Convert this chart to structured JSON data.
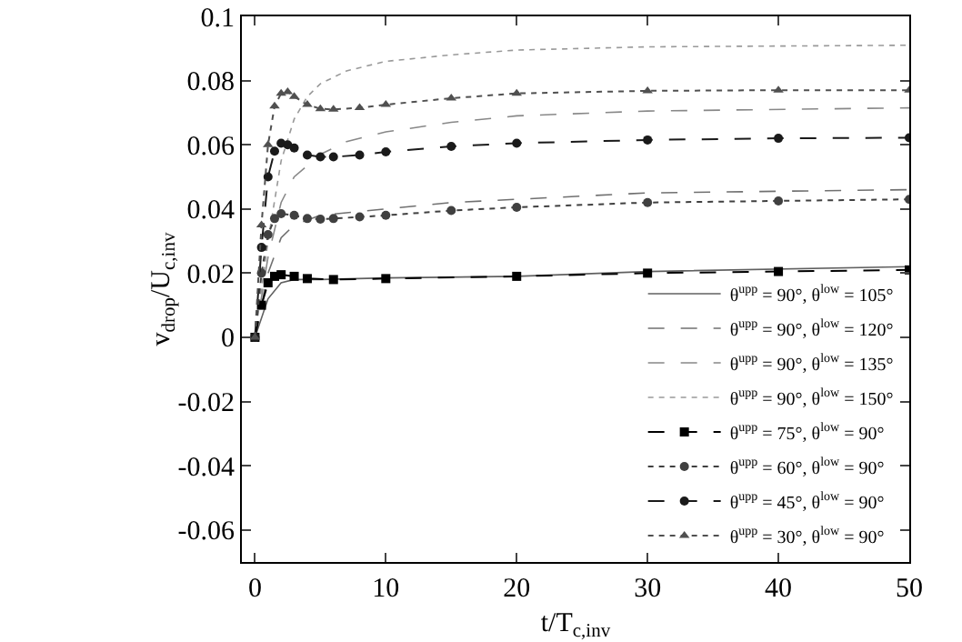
{
  "chart_data": {
    "type": "line",
    "xlabel": "t/T$_{c,inv}$",
    "ylabel": "v$_{drop}$/U$_{c,inv}$",
    "xlim": [
      -1,
      50
    ],
    "ylim": [
      -0.07,
      0.1
    ],
    "xticks": [
      0,
      10,
      20,
      30,
      40,
      50
    ],
    "yticks": [
      -0.06,
      -0.04,
      -0.02,
      0,
      0.02,
      0.04,
      0.06,
      0.08,
      0.1
    ],
    "grid": false,
    "legend": "bottom right",
    "series": [
      {
        "name": "θ$^{upp}$ = 90°, θ$^{low}$ = 105°",
        "color": "#606060",
        "line_style": "solid",
        "marker": "none",
        "x": [
          0,
          1,
          2,
          3,
          5,
          10,
          20,
          30,
          50
        ],
        "values": [
          0,
          0.012,
          0.017,
          0.018,
          0.018,
          0.0185,
          0.019,
          0.0205,
          0.022
        ]
      },
      {
        "name": "θ$^{upp}$ = 90°, θ$^{low}$ = 120°",
        "color": "#707070",
        "line_style": "dashed",
        "marker": "none",
        "x": [
          0,
          1,
          2,
          3,
          5,
          10,
          15,
          20,
          30,
          50
        ],
        "values": [
          0,
          0.02,
          0.031,
          0.035,
          0.038,
          0.04,
          0.042,
          0.043,
          0.045,
          0.046
        ]
      },
      {
        "name": "θ$^{upp}$ = 90°, θ$^{low}$ = 135°",
        "color": "#888888",
        "line_style": "dashed",
        "marker": "none",
        "x": [
          0,
          1,
          2,
          3,
          5,
          7,
          10,
          15,
          20,
          30,
          50
        ],
        "values": [
          0,
          0.025,
          0.042,
          0.05,
          0.057,
          0.061,
          0.064,
          0.067,
          0.069,
          0.0705,
          0.0715
        ]
      },
      {
        "name": "θ$^{upp}$ = 90°, θ$^{low}$ = 150°",
        "color": "#999999",
        "line_style": "dotted",
        "marker": "none",
        "x": [
          0,
          1,
          2,
          3,
          4,
          5,
          7,
          10,
          15,
          20,
          30,
          50
        ],
        "values": [
          0,
          0.03,
          0.055,
          0.068,
          0.075,
          0.079,
          0.083,
          0.086,
          0.088,
          0.0895,
          0.0905,
          0.091
        ]
      },
      {
        "name": "θ$^{upp}$ = 75°, θ$^{low}$ = 90°",
        "color": "#000000",
        "line_style": "dashed",
        "marker": "square",
        "x": [
          0,
          0.5,
          1,
          1.5,
          2,
          3,
          4,
          6,
          10,
          20,
          30,
          40,
          50
        ],
        "values": [
          0,
          0.01,
          0.017,
          0.019,
          0.0195,
          0.019,
          0.0183,
          0.018,
          0.0183,
          0.019,
          0.02,
          0.0205,
          0.021
        ]
      },
      {
        "name": "θ$^{upp}$ = 60°, θ$^{low}$ = 90°",
        "color": "#404040",
        "line_style": "dotted",
        "marker": "circle",
        "x": [
          0,
          0.5,
          1,
          1.5,
          2,
          3,
          4,
          5,
          6,
          8,
          10,
          15,
          20,
          30,
          40,
          50
        ],
        "values": [
          0,
          0.02,
          0.032,
          0.037,
          0.0385,
          0.038,
          0.037,
          0.0368,
          0.037,
          0.0375,
          0.038,
          0.0395,
          0.0405,
          0.042,
          0.0425,
          0.043
        ]
      },
      {
        "name": "θ$^{upp}$ = 45°, θ$^{low}$ = 90°",
        "color": "#1a1a1a",
        "line_style": "dashed",
        "marker": "circle",
        "x": [
          0,
          0.5,
          1,
          1.5,
          2,
          2.5,
          3,
          4,
          5,
          6,
          8,
          10,
          15,
          20,
          30,
          40,
          50
        ],
        "values": [
          0,
          0.028,
          0.05,
          0.058,
          0.0605,
          0.06,
          0.059,
          0.0568,
          0.0562,
          0.0562,
          0.0568,
          0.0578,
          0.0595,
          0.0605,
          0.0615,
          0.062,
          0.0622
        ]
      },
      {
        "name": "θ$^{upp}$ = 30°, θ$^{low}$ = 90°",
        "color": "#505050",
        "line_style": "dotted",
        "marker": "triangle",
        "x": [
          0,
          0.5,
          1,
          1.5,
          2,
          2.5,
          3,
          4,
          5,
          6,
          8,
          10,
          15,
          20,
          30,
          40,
          50
        ],
        "values": [
          0,
          0.035,
          0.06,
          0.072,
          0.076,
          0.0765,
          0.075,
          0.0725,
          0.0712,
          0.071,
          0.0715,
          0.0725,
          0.0745,
          0.076,
          0.0768,
          0.077,
          0.077
        ]
      }
    ]
  }
}
